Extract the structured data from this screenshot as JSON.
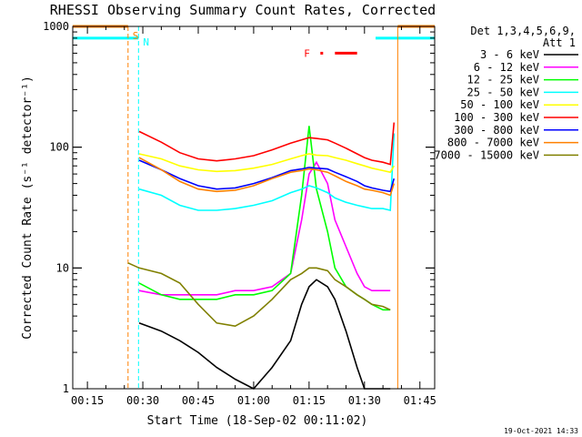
{
  "chart_data": {
    "type": "line",
    "title": "RHESSI Observing Summary Count Rates, Corrected",
    "xlabel": "Start Time (18-Sep-02 00:11:02)",
    "ylabel": "Corrected Count Rate (s⁻¹ detector⁻¹)",
    "yscale": "log",
    "ylim": [
      1,
      1000
    ],
    "xlim": [
      "00:11:02",
      "01:49:00"
    ],
    "xticks": [
      "00:15",
      "00:30",
      "00:45",
      "01:00",
      "01:15",
      "01:30",
      "01:45"
    ],
    "yticks": [
      "1",
      "10",
      "100",
      "1000"
    ],
    "x_minutes": [
      "00:26",
      "00:29",
      "00:35",
      "00:40",
      "00:45",
      "00:50",
      "00:55",
      "01:00",
      "01:05",
      "01:10",
      "01:13",
      "01:15",
      "01:17",
      "01:20",
      "01:22",
      "01:25",
      "01:28",
      "01:30",
      "01:32",
      "01:35",
      "01:37",
      "01:38"
    ],
    "series": [
      {
        "name": "3 - 6 keV",
        "color": "#000000",
        "values": [
          null,
          3.5,
          3.0,
          2.5,
          2.0,
          1.5,
          1.2,
          1.0,
          1.5,
          2.5,
          5.0,
          7.0,
          8.0,
          7.0,
          5.5,
          3.0,
          1.5,
          1.0,
          1.0,
          1.0,
          1.0,
          null
        ]
      },
      {
        "name": "6 - 12 keV",
        "color": "#ff00ff",
        "values": [
          null,
          6.5,
          6.0,
          6.0,
          6.0,
          6.0,
          6.5,
          6.5,
          7.0,
          9.0,
          25,
          60,
          75,
          50,
          25,
          15,
          9.0,
          7.0,
          6.5,
          6.5,
          6.5,
          null
        ]
      },
      {
        "name": "12 - 25 keV",
        "color": "#00ff00",
        "values": [
          null,
          7.5,
          6.0,
          5.5,
          5.5,
          5.5,
          6.0,
          6.0,
          6.5,
          9.0,
          40,
          150,
          45,
          20,
          10,
          7.0,
          6.0,
          5.5,
          5.0,
          4.5,
          4.5,
          null
        ]
      },
      {
        "name": "25 - 50 keV",
        "color": "#00ffff",
        "values": [
          null,
          45,
          40,
          33,
          30,
          30,
          31,
          33,
          36,
          42,
          45,
          48,
          46,
          42,
          38,
          35,
          33,
          32,
          31,
          31,
          30,
          130
        ]
      },
      {
        "name": "50 - 100 keV",
        "color": "#ffff00",
        "values": [
          null,
          88,
          80,
          70,
          65,
          63,
          64,
          67,
          72,
          80,
          85,
          88,
          86,
          85,
          82,
          78,
          73,
          70,
          67,
          64,
          62,
          70
        ]
      },
      {
        "name": "100 - 300 keV",
        "color": "#ff0000",
        "values": [
          null,
          135,
          110,
          90,
          80,
          77,
          80,
          85,
          95,
          108,
          115,
          120,
          118,
          115,
          108,
          98,
          88,
          82,
          78,
          75,
          72,
          160
        ]
      },
      {
        "name": "300 - 800 keV",
        "color": "#0000ff",
        "values": [
          null,
          78,
          65,
          55,
          48,
          45,
          46,
          50,
          56,
          64,
          66,
          68,
          67,
          66,
          62,
          57,
          52,
          48,
          46,
          44,
          43,
          55
        ]
      },
      {
        "name": "800 - 7000 keV",
        "color": "#ff8000",
        "values": [
          null,
          82,
          65,
          52,
          45,
          43,
          44,
          48,
          55,
          62,
          64,
          66,
          65,
          62,
          58,
          52,
          48,
          45,
          44,
          42,
          40,
          50
        ]
      },
      {
        "name": "7000 - 15000 keV",
        "color": "#808000",
        "values": [
          11,
          10,
          9.0,
          7.5,
          5.0,
          3.5,
          3.3,
          4.0,
          5.5,
          8.0,
          9.0,
          10,
          10,
          9.5,
          8.0,
          7.0,
          6.0,
          5.5,
          5.0,
          4.8,
          4.5,
          null
        ]
      }
    ],
    "legend": {
      "header": [
        "Det 1,3,4,5,6,9,",
        "Att 1"
      ],
      "placement": "right"
    },
    "annotations": {
      "saa_label": "S",
      "night_label": "N",
      "flare_label": "F",
      "saa_level": 1000,
      "night_level": 800,
      "flare_flag": {
        "level": 600,
        "start": "01:22",
        "end": "01:28"
      },
      "saa_intervals": [
        [
          "00:11:02",
          "00:26:00"
        ],
        [
          "01:39:00",
          "01:49:00"
        ]
      ],
      "night_intervals": [
        [
          "00:11:02",
          "00:28:50"
        ],
        [
          "01:33:00",
          "01:49:00"
        ]
      ]
    },
    "colors": {
      "saa": "#ff8000",
      "night": "#00ffff",
      "flare": "#ff0000"
    },
    "timestamp": "19-Oct-2021 14:33"
  }
}
